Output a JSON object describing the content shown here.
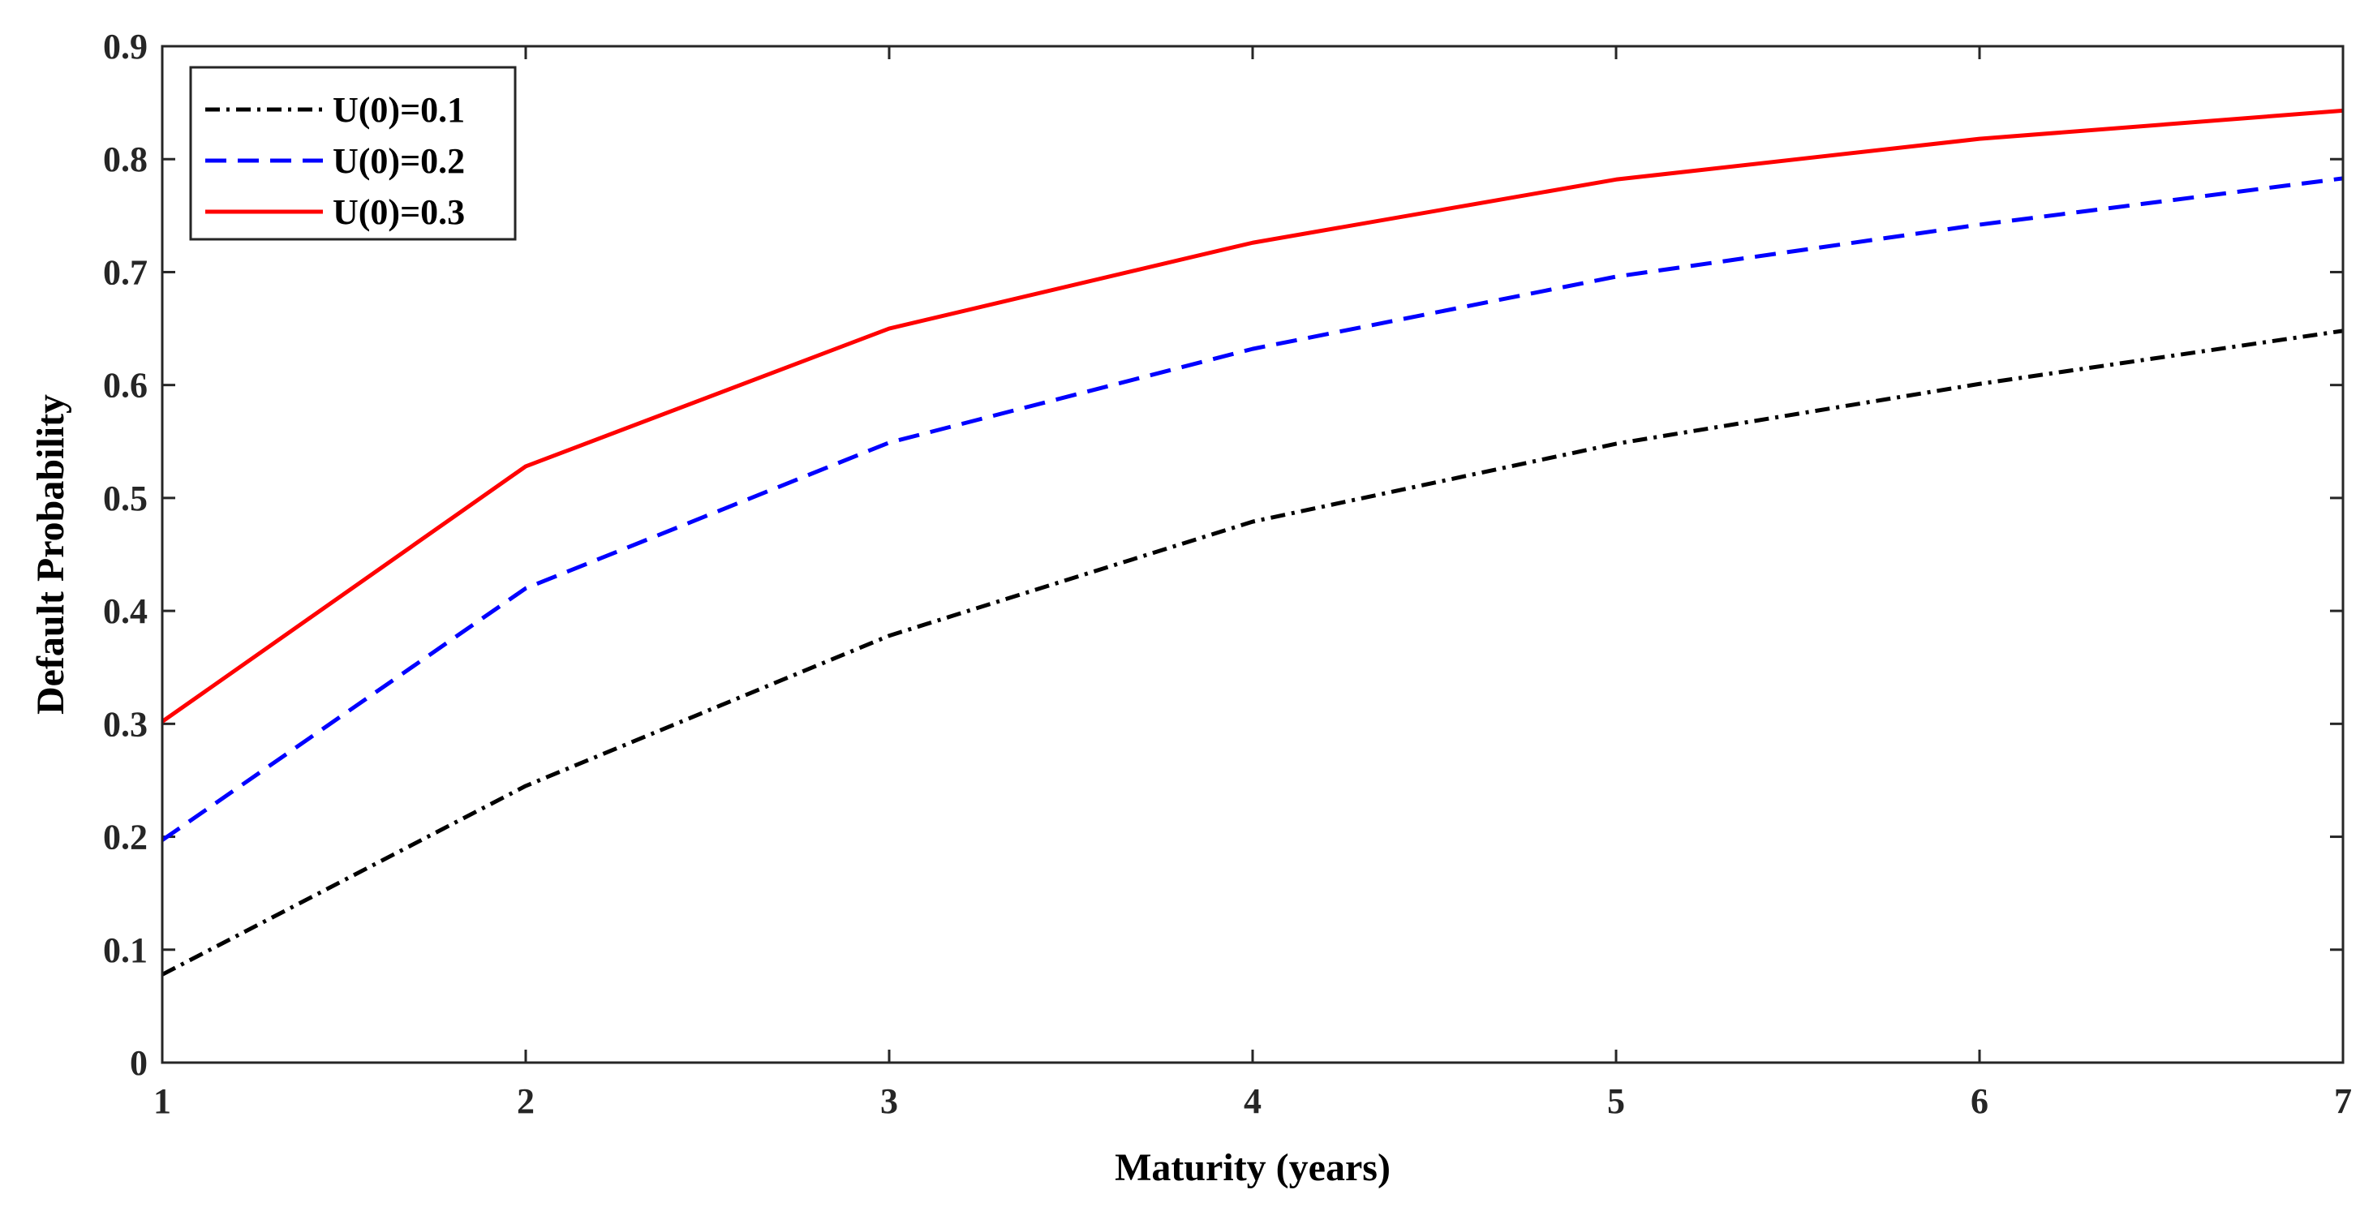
{
  "chart_data": {
    "type": "line",
    "title": "",
    "xlabel": "Maturity (years)",
    "ylabel": "Default Probability",
    "xlim": [
      1,
      7
    ],
    "ylim": [
      0,
      0.9
    ],
    "x_ticks": [
      "1",
      "2",
      "3",
      "4",
      "5",
      "6",
      "7"
    ],
    "y_ticks": [
      "0",
      "0.1",
      "0.2",
      "0.3",
      "0.4",
      "0.5",
      "0.6",
      "0.7",
      "0.8",
      "0.9"
    ],
    "x": [
      1,
      2,
      3,
      4,
      5,
      6,
      7
    ],
    "grid": false,
    "legend_position": "top-left",
    "series": [
      {
        "name": "U(0)=0.1",
        "values": [
          0.078,
          0.245,
          0.378,
          0.479,
          0.548,
          0.601,
          0.648
        ],
        "color": "#000000",
        "style": "dashdot"
      },
      {
        "name": "U(0)=0.2",
        "values": [
          0.197,
          0.42,
          0.549,
          0.632,
          0.696,
          0.742,
          0.783
        ],
        "color": "#0000ff",
        "style": "dashed"
      },
      {
        "name": "U(0)=0.3",
        "values": [
          0.302,
          0.528,
          0.65,
          0.726,
          0.782,
          0.818,
          0.843
        ],
        "color": "#ff0000",
        "style": "solid"
      }
    ]
  }
}
